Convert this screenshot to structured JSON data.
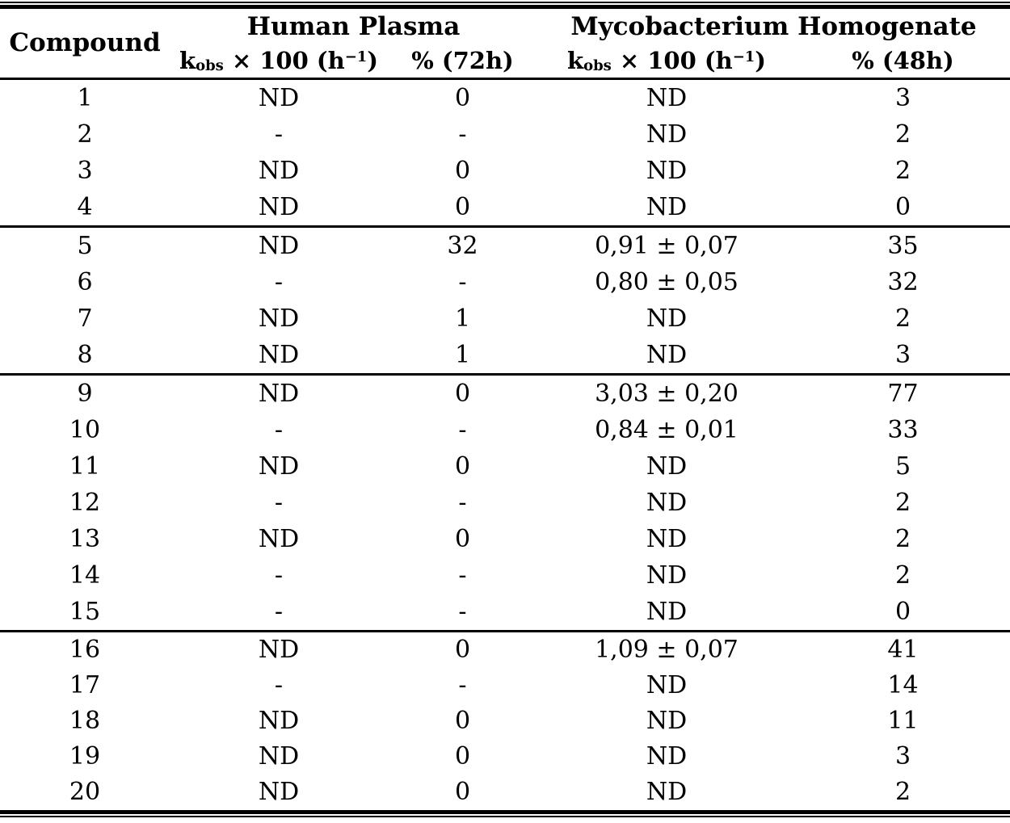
{
  "colors": {
    "text": "#000000",
    "background": "#ffffff",
    "rules": "#000000"
  },
  "table": {
    "corner_header": "Compound",
    "group_headers": [
      "Human Plasma",
      "Mycobacterium Homogenate"
    ],
    "kobs_header": {
      "base": "k",
      "subscript": "obs",
      "mid": " × 100 (h",
      "superscript": "−1",
      "close": ")"
    },
    "pct_headers": [
      "% (72h)",
      "% (48h)"
    ],
    "cell_names": [
      "compound-cell",
      "plasma-kobs-cell",
      "plasma-pct-cell",
      "myco-kobs-cell",
      "myco-pct-cell"
    ],
    "groups": [
      {
        "rows": [
          {
            "compound": "1",
            "plasma_kobs": "ND",
            "plasma_pct": "0",
            "myco_kobs": "ND",
            "myco_pct": "3"
          },
          {
            "compound": "2",
            "plasma_kobs": "-",
            "plasma_pct": "-",
            "myco_kobs": "ND",
            "myco_pct": "2"
          },
          {
            "compound": "3",
            "plasma_kobs": "ND",
            "plasma_pct": "0",
            "myco_kobs": "ND",
            "myco_pct": "2"
          },
          {
            "compound": "4",
            "plasma_kobs": "ND",
            "plasma_pct": "0",
            "myco_kobs": "ND",
            "myco_pct": "0"
          }
        ]
      },
      {
        "rows": [
          {
            "compound": "5",
            "plasma_kobs": "ND",
            "plasma_pct": "32",
            "myco_kobs": "0,91 ± 0,07",
            "myco_pct": "35"
          },
          {
            "compound": "6",
            "plasma_kobs": "-",
            "plasma_pct": "-",
            "myco_kobs": "0,80 ± 0,05",
            "myco_pct": "32"
          },
          {
            "compound": "7",
            "plasma_kobs": "ND",
            "plasma_pct": "1",
            "myco_kobs": "ND",
            "myco_pct": "2"
          },
          {
            "compound": "8",
            "plasma_kobs": "ND",
            "plasma_pct": "1",
            "myco_kobs": "ND",
            "myco_pct": "3"
          }
        ]
      },
      {
        "rows": [
          {
            "compound": "9",
            "plasma_kobs": "ND",
            "plasma_pct": "0",
            "myco_kobs": "3,03 ± 0,20",
            "myco_pct": "77"
          },
          {
            "compound": "10",
            "plasma_kobs": "-",
            "plasma_pct": "-",
            "myco_kobs": "0,84 ± 0,01",
            "myco_pct": "33"
          },
          {
            "compound": "11",
            "plasma_kobs": "ND",
            "plasma_pct": "0",
            "myco_kobs": "ND",
            "myco_pct": "5"
          },
          {
            "compound": "12",
            "plasma_kobs": "-",
            "plasma_pct": "-",
            "myco_kobs": "ND",
            "myco_pct": "2"
          },
          {
            "compound": "13",
            "plasma_kobs": "ND",
            "plasma_pct": "0",
            "myco_kobs": "ND",
            "myco_pct": "2"
          },
          {
            "compound": "14",
            "plasma_kobs": "-",
            "plasma_pct": "-",
            "myco_kobs": "ND",
            "myco_pct": "2"
          },
          {
            "compound": "15",
            "plasma_kobs": "-",
            "plasma_pct": "-",
            "myco_kobs": "ND",
            "myco_pct": "0"
          }
        ]
      },
      {
        "rows": [
          {
            "compound": "16",
            "plasma_kobs": "ND",
            "plasma_pct": "0",
            "myco_kobs": "1,09 ± 0,07",
            "myco_pct": "41"
          },
          {
            "compound": "17",
            "plasma_kobs": "-",
            "plasma_pct": "-",
            "myco_kobs": "ND",
            "myco_pct": "14"
          },
          {
            "compound": "18",
            "plasma_kobs": "ND",
            "plasma_pct": "0",
            "myco_kobs": "ND",
            "myco_pct": "11"
          },
          {
            "compound": "19",
            "plasma_kobs": "ND",
            "plasma_pct": "0",
            "myco_kobs": "ND",
            "myco_pct": "3"
          },
          {
            "compound": "20",
            "plasma_kobs": "ND",
            "plasma_pct": "0",
            "myco_kobs": "ND",
            "myco_pct": "2"
          }
        ]
      }
    ]
  }
}
